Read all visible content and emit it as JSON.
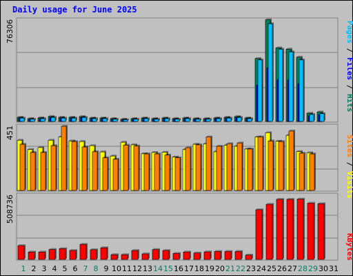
{
  "title": "Daily usage for June 2025",
  "colors": {
    "hits": "#00805c",
    "files": "#0000ff",
    "pages": "#00c0ff",
    "visits": "#ffff00",
    "sites": "#ff8000",
    "kbytes": "#ff0000",
    "weekday_label": "#000000",
    "weekend_label": "#00805c"
  },
  "chart_data": [
    {
      "type": "bar",
      "panel": "hits-files-pages",
      "y_axis_max_label": "76306",
      "ylim": [
        0,
        76306
      ],
      "categories": [
        "1",
        "2",
        "3",
        "4",
        "5",
        "6",
        "7",
        "8",
        "9",
        "10",
        "11",
        "12",
        "13",
        "14",
        "15",
        "16",
        "17",
        "18",
        "19",
        "20",
        "21",
        "22",
        "23",
        "24",
        "25",
        "26",
        "27",
        "28",
        "29",
        "30",
        "31"
      ],
      "weekend_days": [
        "1",
        "7",
        "8",
        "14",
        "15",
        "21",
        "22",
        "28",
        "29"
      ],
      "legend": [
        {
          "text": "Pages",
          "color": "#00c0ff"
        },
        {
          "text": " / ",
          "color": "#000000"
        },
        {
          "text": "Files",
          "color": "#0000ff"
        },
        {
          "text": " / ",
          "color": "#000000"
        },
        {
          "text": "Hits",
          "color": "#00805c"
        }
      ],
      "series": [
        {
          "name": "Hits",
          "color": "#00805c",
          "values": [
            3100,
            2100,
            2700,
            3700,
            3100,
            3100,
            3600,
            2600,
            2600,
            2100,
            1600,
            2100,
            2600,
            2100,
            2600,
            2100,
            2600,
            2100,
            2100,
            2600,
            3100,
            3600,
            2600,
            47000,
            76000,
            55000,
            54000,
            48000,
            6100,
            7100,
            0
          ]
        },
        {
          "name": "Files",
          "color": "#0000ff",
          "values": [
            2500,
            1700,
            2100,
            3000,
            2500,
            2500,
            3000,
            2100,
            2100,
            1700,
            1300,
            1700,
            2100,
            1700,
            2100,
            1700,
            2100,
            1700,
            1700,
            2100,
            2500,
            3000,
            2100,
            27000,
            40000,
            31000,
            31000,
            28000,
            4200,
            5100,
            0
          ]
        },
        {
          "name": "Pages",
          "color": "#00c0ff",
          "values": [
            2500,
            1700,
            2100,
            3000,
            2500,
            2500,
            3000,
            2100,
            2100,
            1700,
            1300,
            1700,
            2100,
            1700,
            2100,
            1700,
            2100,
            1700,
            1700,
            2100,
            2500,
            3000,
            2100,
            46000,
            73000,
            54000,
            52000,
            46000,
            5200,
            5800,
            0
          ]
        }
      ]
    },
    {
      "type": "bar",
      "panel": "visits-sites",
      "y_axis_max_label": "451",
      "ylim": [
        0,
        451
      ],
      "categories": [
        "1",
        "2",
        "3",
        "4",
        "5",
        "6",
        "7",
        "8",
        "9",
        "10",
        "11",
        "12",
        "13",
        "14",
        "15",
        "16",
        "17",
        "18",
        "19",
        "20",
        "21",
        "22",
        "23",
        "24",
        "25",
        "26",
        "27",
        "28",
        "29",
        "30",
        "31"
      ],
      "legend": [
        {
          "text": "Sites",
          "color": "#ff8000"
        },
        {
          "text": " / ",
          "color": "#000000"
        },
        {
          "text": "Visits",
          "color": "#ffff00"
        }
      ],
      "series": [
        {
          "name": "Visits",
          "color": "#ffff00",
          "values": [
            349,
            284,
            298,
            349,
            372,
            344,
            340,
            311,
            268,
            239,
            335,
            317,
            255,
            264,
            265,
            232,
            284,
            321,
            324,
            269,
            314,
            307,
            288,
            372,
            401,
            342,
            383,
            270,
            262,
            0,
            0
          ]
        },
        {
          "name": "Sites",
          "color": "#ff8000",
          "values": [
            321,
            264,
            264,
            311,
            446,
            340,
            302,
            269,
            227,
            217,
            315,
            309,
            254,
            254,
            246,
            227,
            297,
            317,
            372,
            307,
            325,
            330,
            288,
            372,
            344,
            340,
            413,
            259,
            254,
            0,
            0
          ]
        }
      ]
    },
    {
      "type": "bar",
      "panel": "kbytes",
      "y_axis_max_label": "508736",
      "ylim": [
        0,
        508736
      ],
      "categories": [
        "1",
        "2",
        "3",
        "4",
        "5",
        "6",
        "7",
        "8",
        "9",
        "10",
        "11",
        "12",
        "13",
        "14",
        "15",
        "16",
        "17",
        "18",
        "19",
        "20",
        "21",
        "22",
        "23",
        "24",
        "25",
        "26",
        "27",
        "28",
        "29",
        "30",
        "31"
      ],
      "legend": [
        {
          "text": "KBytes",
          "color": "#ff0000"
        }
      ],
      "series": [
        {
          "name": "KBytes",
          "color": "#ff0000",
          "values": [
            108000,
            58000,
            58000,
            78000,
            84000,
            70000,
            118000,
            76000,
            91000,
            37000,
            37000,
            70000,
            43000,
            77000,
            70000,
            47000,
            58000,
            50000,
            59000,
            62000,
            62000,
            62000,
            34000,
            390000,
            432000,
            471000,
            471000,
            473000,
            441000,
            437000,
            0
          ]
        }
      ]
    }
  ],
  "day_labels": [
    "1",
    "2",
    "3",
    "4",
    "5",
    "6",
    "7",
    "8",
    "9",
    "10",
    "11",
    "12",
    "13",
    "14",
    "15",
    "16",
    "17",
    "18",
    "19",
    "20",
    "21",
    "22",
    "23",
    "24",
    "25",
    "26",
    "27",
    "28",
    "29",
    "30",
    "31"
  ]
}
